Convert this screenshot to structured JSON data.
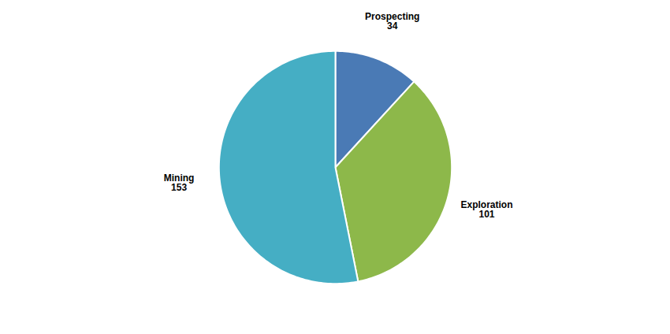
{
  "chart_data": {
    "type": "pie",
    "categories": [
      "Prospecting",
      "Exploration",
      "Mining"
    ],
    "values": [
      34,
      101,
      153
    ],
    "colors": [
      "#4a7ab5",
      "#8db84a",
      "#45aec4"
    ],
    "data_labels": true
  }
}
